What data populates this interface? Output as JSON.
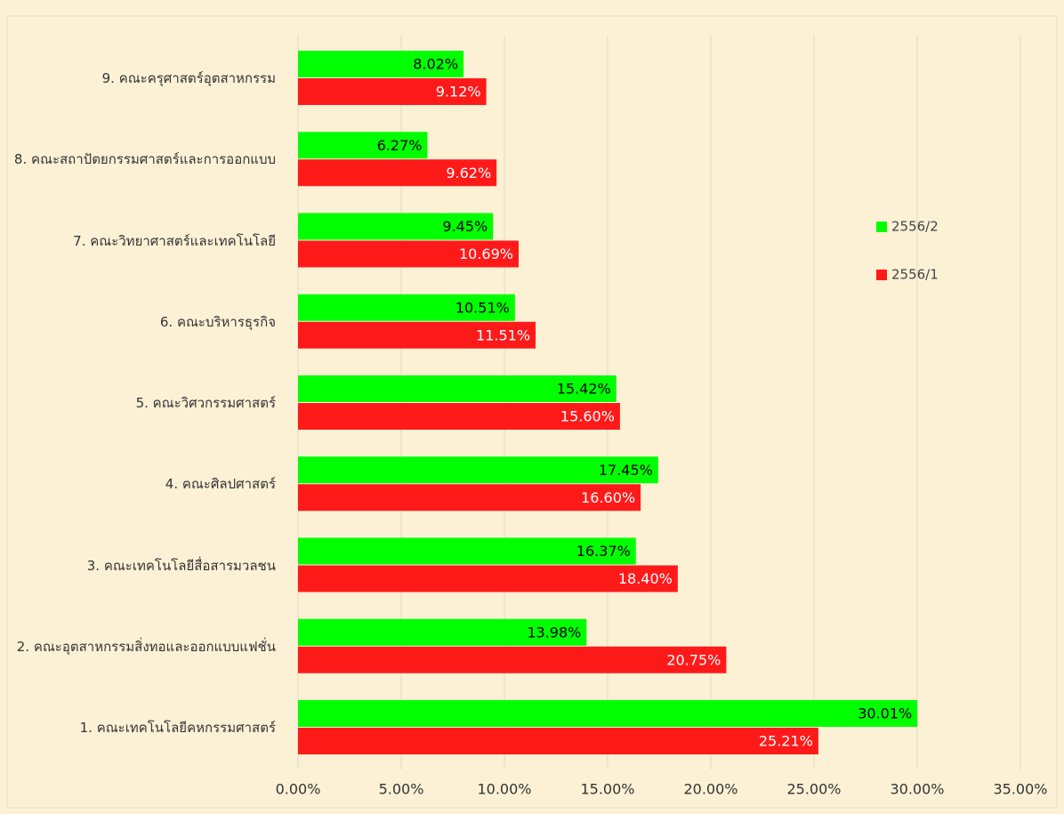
{
  "chart_data": {
    "type": "bar",
    "orientation": "horizontal",
    "categories": [
      "1. คณะเทคโนโลยีคหกรรมศาสตร์",
      "2. คณะอุตสาหกรรมสิ่งทอและออกแบบแฟชั่น",
      "3. คณะเทคโนโลยีสื่อสารมวลชน",
      "4. คณะศิลปศาสตร์",
      "5. คณะวิศวกรรมศาสตร์",
      "6. คณะบริหารธุรกิจ",
      "7. คณะวิทยาศาสตร์และเทคโนโลยี",
      "8. คณะสถาปัตยกรรมศาสตร์และการออกแบบ",
      "9. คณะครุศาสตร์อุตสาหกรรม"
    ],
    "series": [
      {
        "name": "2556/2",
        "color": "#00ff00",
        "values": [
          30.01,
          13.98,
          16.37,
          17.45,
          15.42,
          10.51,
          9.45,
          6.27,
          8.02
        ],
        "value_labels": [
          "30.01%",
          "13.98%",
          "16.37%",
          "17.45%",
          "15.42%",
          "10.51%",
          "9.45%",
          "6.27%",
          "8.02%"
        ]
      },
      {
        "name": "2556/1",
        "color": "#ff1a1a",
        "values": [
          25.21,
          20.75,
          18.4,
          16.6,
          15.6,
          11.51,
          10.69,
          9.62,
          9.12
        ],
        "value_labels": [
          "25.21%",
          "20.75%",
          "18.40%",
          "16.60%",
          "15.60%",
          "11.51%",
          "10.69%",
          "9.62%",
          "9.12%"
        ]
      }
    ],
    "xlim": [
      0,
      35
    ],
    "xticks": [
      {
        "value": 0,
        "label": "0.00%"
      },
      {
        "value": 5,
        "label": "5.00%"
      },
      {
        "value": 10,
        "label": "10.00%"
      },
      {
        "value": 15,
        "label": "15.00%"
      },
      {
        "value": 20,
        "label": "20.00%"
      },
      {
        "value": 25,
        "label": "25.00%"
      },
      {
        "value": 30,
        "label": "30.00%"
      },
      {
        "value": 35,
        "label": "35.00%"
      }
    ],
    "grid": true
  }
}
